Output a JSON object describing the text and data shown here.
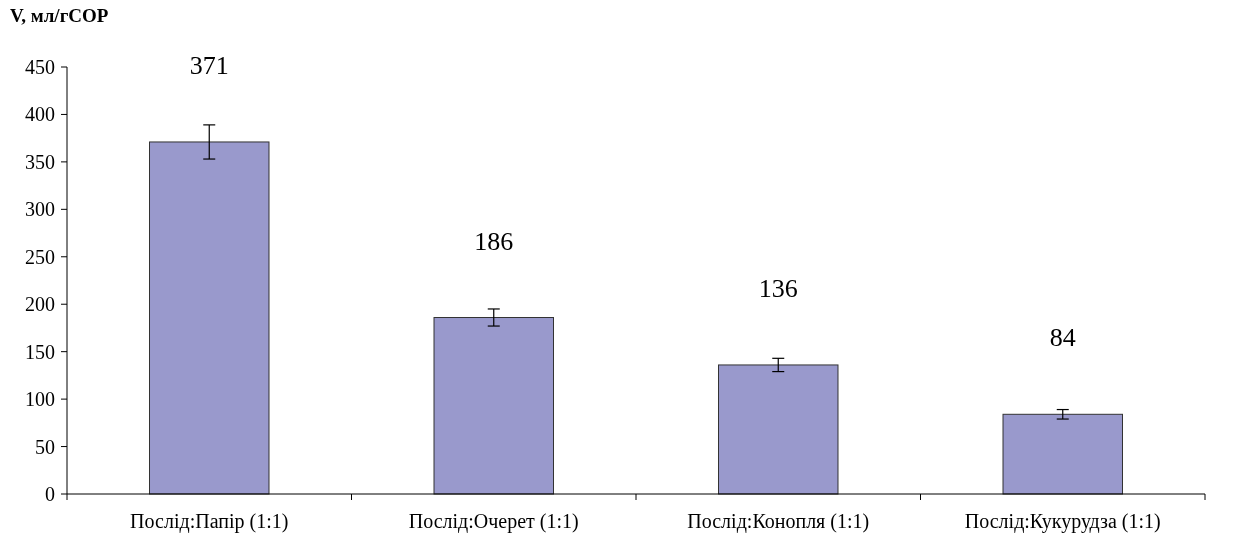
{
  "chart_data": {
    "type": "bar",
    "ylabel": "V, мл/гСОР",
    "categories": [
      "Послід:Папір (1:1)",
      "Послід:Очерет (1:1)",
      "Послід:Конопля (1:1)",
      "Послід:Кукурудза (1:1)"
    ],
    "values": [
      371,
      186,
      136,
      84
    ],
    "errors": [
      18,
      9,
      7,
      5
    ],
    "color": "#9999cc",
    "ylim": [
      0,
      450
    ],
    "yticks": [
      0,
      50,
      100,
      150,
      200,
      250,
      300,
      350,
      400,
      450
    ],
    "data_labels": true
  }
}
